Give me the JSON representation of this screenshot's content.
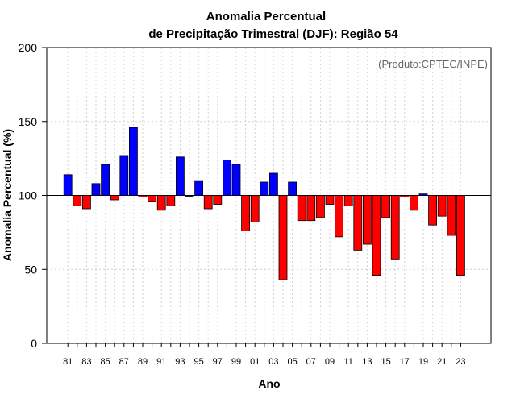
{
  "chart_data": {
    "type": "bar",
    "title_line1": "Anomalia Percentual",
    "title_line2": "de Precipitação Trimestral (DJF): Região 54",
    "xlabel": "Ano",
    "ylabel": "Anomalia Percentual (%)",
    "credit": "(Produto:CPTEC/INPE)",
    "baseline": 100,
    "ylim": [
      0,
      200
    ],
    "yticks": [
      0,
      50,
      100,
      150,
      200
    ],
    "grid": true,
    "colors": {
      "above": "#0000ff",
      "below": "#ff0000",
      "edge": "#000000",
      "grid": "#d3d3d3"
    },
    "xtick_labels": [
      "81",
      "83",
      "85",
      "87",
      "89",
      "91",
      "93",
      "95",
      "97",
      "99",
      "01",
      "03",
      "05",
      "07",
      "09",
      "11",
      "13",
      "15",
      "17",
      "19",
      "21",
      "23"
    ],
    "years": [
      1981,
      1982,
      1983,
      1984,
      1985,
      1986,
      1987,
      1988,
      1989,
      1990,
      1991,
      1992,
      1993,
      1994,
      1995,
      1996,
      1997,
      1998,
      1999,
      2000,
      2001,
      2002,
      2003,
      2004,
      2005,
      2006,
      2007,
      2008,
      2009,
      2010,
      2011,
      2012,
      2013,
      2014,
      2015,
      2016,
      2017,
      2018,
      2019,
      2020,
      2021,
      2022,
      2023
    ],
    "values": [
      114,
      93,
      91,
      108,
      121,
      97,
      127,
      146,
      99,
      96,
      90,
      93,
      126,
      100,
      110,
      91,
      94,
      124,
      121,
      76,
      82,
      109,
      115,
      43,
      109,
      83,
      83,
      85,
      94,
      72,
      93,
      63,
      67,
      46,
      85,
      57,
      99,
      90,
      101,
      80,
      86,
      73,
      46
    ]
  }
}
